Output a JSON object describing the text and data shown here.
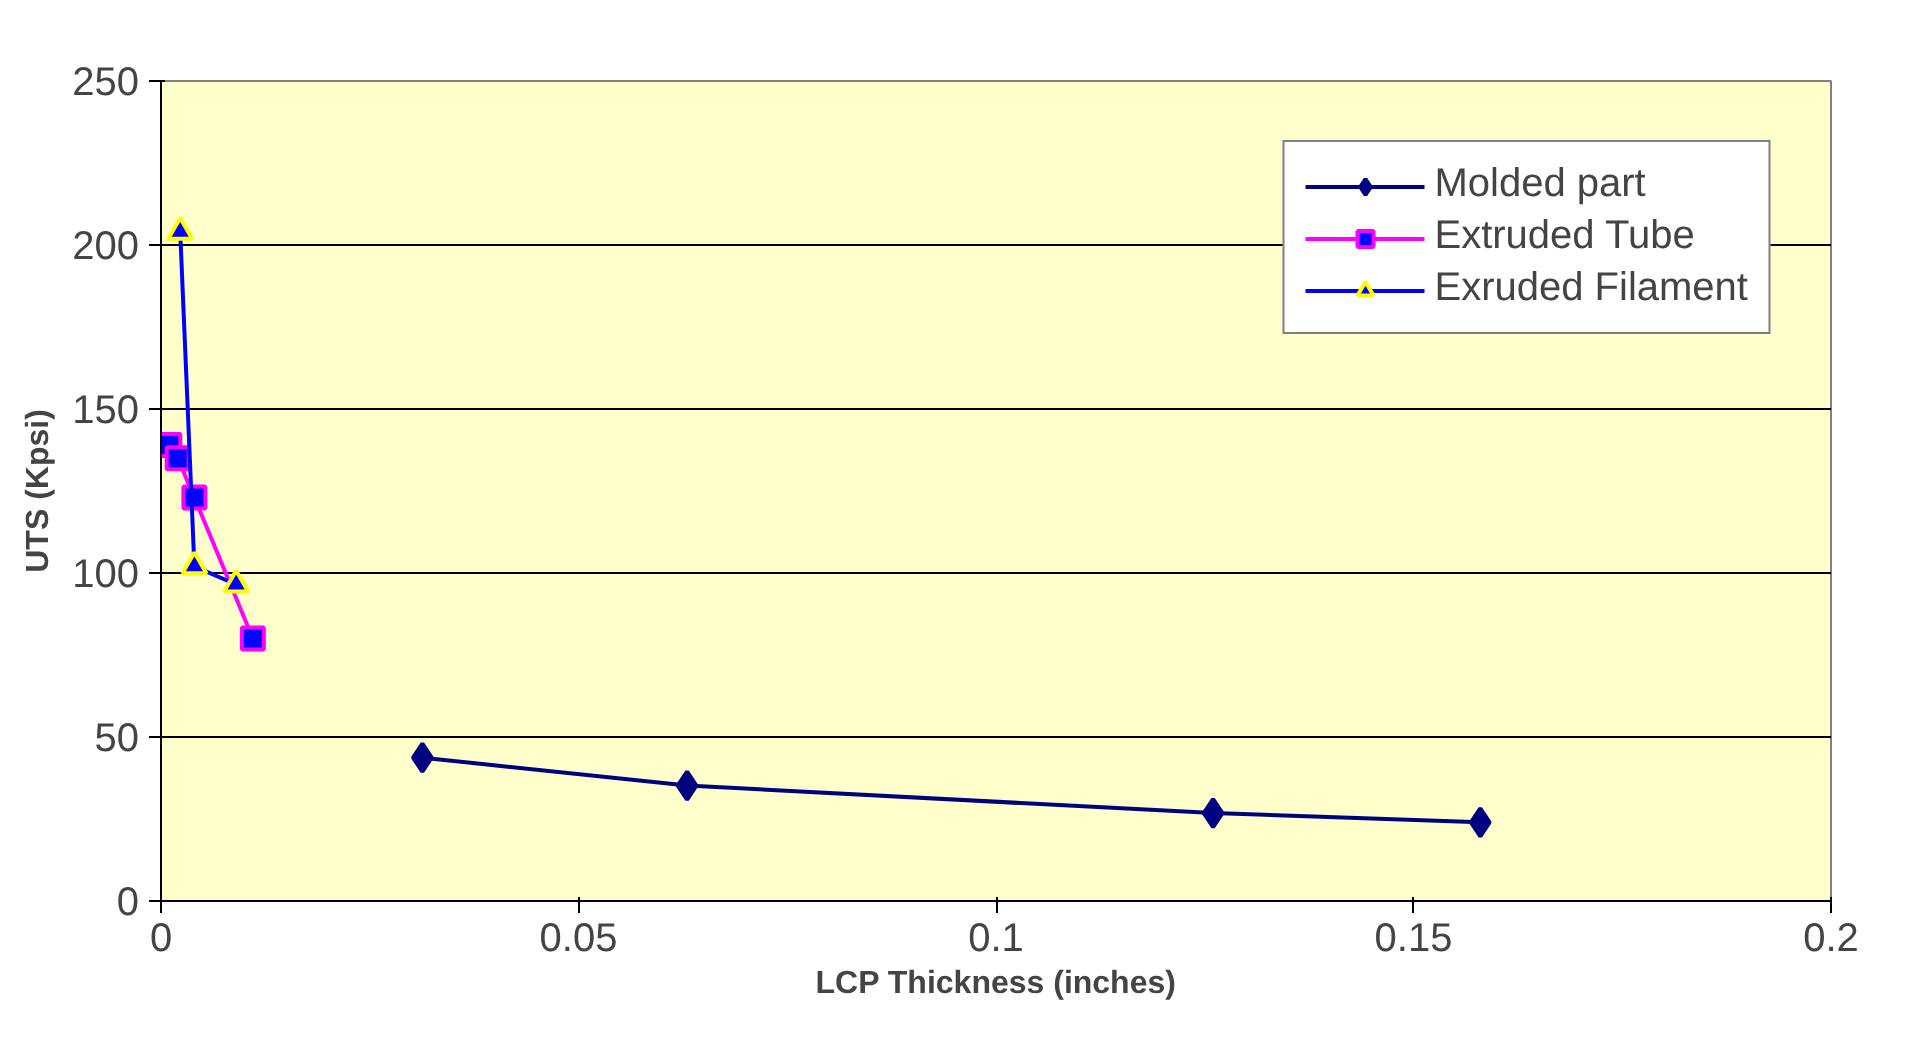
{
  "chart_data": {
    "type": "line",
    "xlabel": "LCP Thickness (inches)",
    "ylabel": "UTS (Kpsi)",
    "xlim": [
      0,
      0.2
    ],
    "ylim": [
      0,
      250
    ],
    "xticks": [
      0,
      0.05,
      0.1,
      0.15,
      0.2
    ],
    "yticks": [
      0,
      50,
      100,
      150,
      200,
      250
    ],
    "grid": "y",
    "legend": "top right",
    "series": [
      {
        "name": "Molded part",
        "color": "#000080",
        "marker": "diamond",
        "x": [
          0.0313,
          0.063,
          0.126,
          0.158
        ],
        "values": [
          43.7,
          35.2,
          26.8,
          24
        ]
      },
      {
        "name": "Extruded Tube",
        "color": "#ff00ff",
        "marker": "square",
        "x": [
          0.001,
          0.002,
          0.004,
          0.011
        ],
        "values": [
          139,
          135,
          123,
          80
        ]
      },
      {
        "name": "Exruded Filament",
        "color": "#0000ff",
        "marker": "triangle",
        "x": [
          0.0023,
          0.004,
          0.009
        ],
        "values": [
          204,
          102,
          96.5
        ]
      }
    ]
  }
}
